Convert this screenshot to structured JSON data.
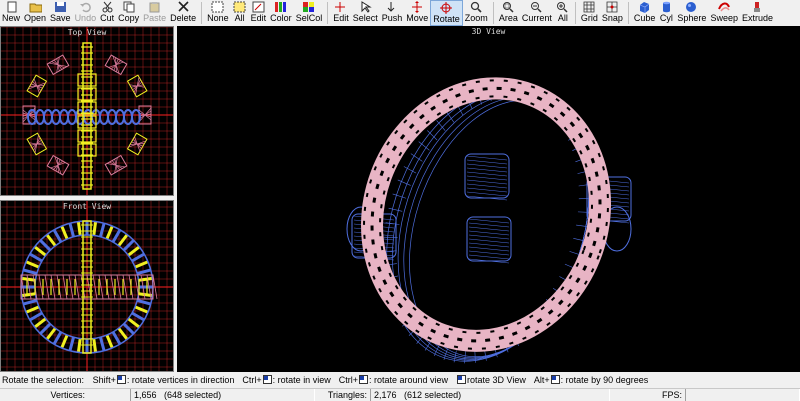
{
  "toolbar": {
    "buttons": [
      {
        "label": "New",
        "icon": "new-file-icon"
      },
      {
        "label": "Open",
        "icon": "open-folder-icon"
      },
      {
        "label": "Save",
        "icon": "save-disk-icon"
      },
      {
        "label": "Undo",
        "icon": "undo-icon",
        "disabled": true
      },
      {
        "label": "Cut",
        "icon": "scissors-icon"
      },
      {
        "label": "Copy",
        "icon": "copy-icon"
      },
      {
        "label": "Paste",
        "icon": "paste-icon",
        "disabled": true
      },
      {
        "label": "Delete",
        "icon": "delete-x-icon"
      },
      {
        "label": "None",
        "icon": "select-none-icon"
      },
      {
        "label": "All",
        "icon": "select-all-icon"
      },
      {
        "label": "Edit",
        "icon": "edit-icon"
      },
      {
        "label": "Color",
        "icon": "color-palette-icon"
      },
      {
        "label": "SelCol",
        "icon": "select-color-icon"
      },
      {
        "label": "Edit",
        "icon": "edit-point-icon"
      },
      {
        "label": "Select",
        "icon": "select-arrow-icon"
      },
      {
        "label": "Push",
        "icon": "push-icon"
      },
      {
        "label": "Move",
        "icon": "move-icon"
      },
      {
        "label": "Rotate",
        "icon": "rotate-icon",
        "active": true
      },
      {
        "label": "Zoom",
        "icon": "zoom-icon"
      },
      {
        "label": "Area",
        "icon": "area-icon"
      },
      {
        "label": "Current",
        "icon": "current-view-icon"
      },
      {
        "label": "All",
        "icon": "all-view-icon"
      },
      {
        "label": "Grid",
        "icon": "grid-icon"
      },
      {
        "label": "Snap",
        "icon": "snap-icon"
      },
      {
        "label": "Cube",
        "icon": "cube-icon"
      },
      {
        "label": "Cyl",
        "icon": "cylinder-icon"
      },
      {
        "label": "Sphere",
        "icon": "sphere-icon"
      },
      {
        "label": "Sweep",
        "icon": "sweep-icon"
      },
      {
        "label": "Extrude",
        "icon": "extrude-icon"
      }
    ]
  },
  "viewports": {
    "top": {
      "title": "Top View"
    },
    "front": {
      "title": "Front View"
    },
    "three_d": {
      "title": "3D View"
    }
  },
  "hints": {
    "lead": "Rotate the selection:",
    "items": [
      {
        "key": "Shift+",
        "text": ": rotate vertices in direction"
      },
      {
        "key": "Ctrl+",
        "text": ": rotate in view"
      },
      {
        "key": "Ctrl+",
        "text": ": rotate around view"
      },
      {
        "key": "",
        "text": "rotate 3D View"
      },
      {
        "key": "Alt+",
        "text": ": rotate by 90 degrees"
      }
    ]
  },
  "status": {
    "vertices_label": "Vertices:",
    "vertices_value": "1,656",
    "vertices_selected": "(648 selected)",
    "triangles_label": "Triangles:",
    "triangles_value": "2,176",
    "triangles_selected": "(612 selected)",
    "fps_label": "FPS:",
    "fps_value": ""
  },
  "colors": {
    "grid": "#b22222",
    "axis": "#ff2020",
    "torus_pink": "#e8b4c4",
    "wire_blue": "#4f6fe0",
    "selected_yellow": "#f0f020"
  }
}
